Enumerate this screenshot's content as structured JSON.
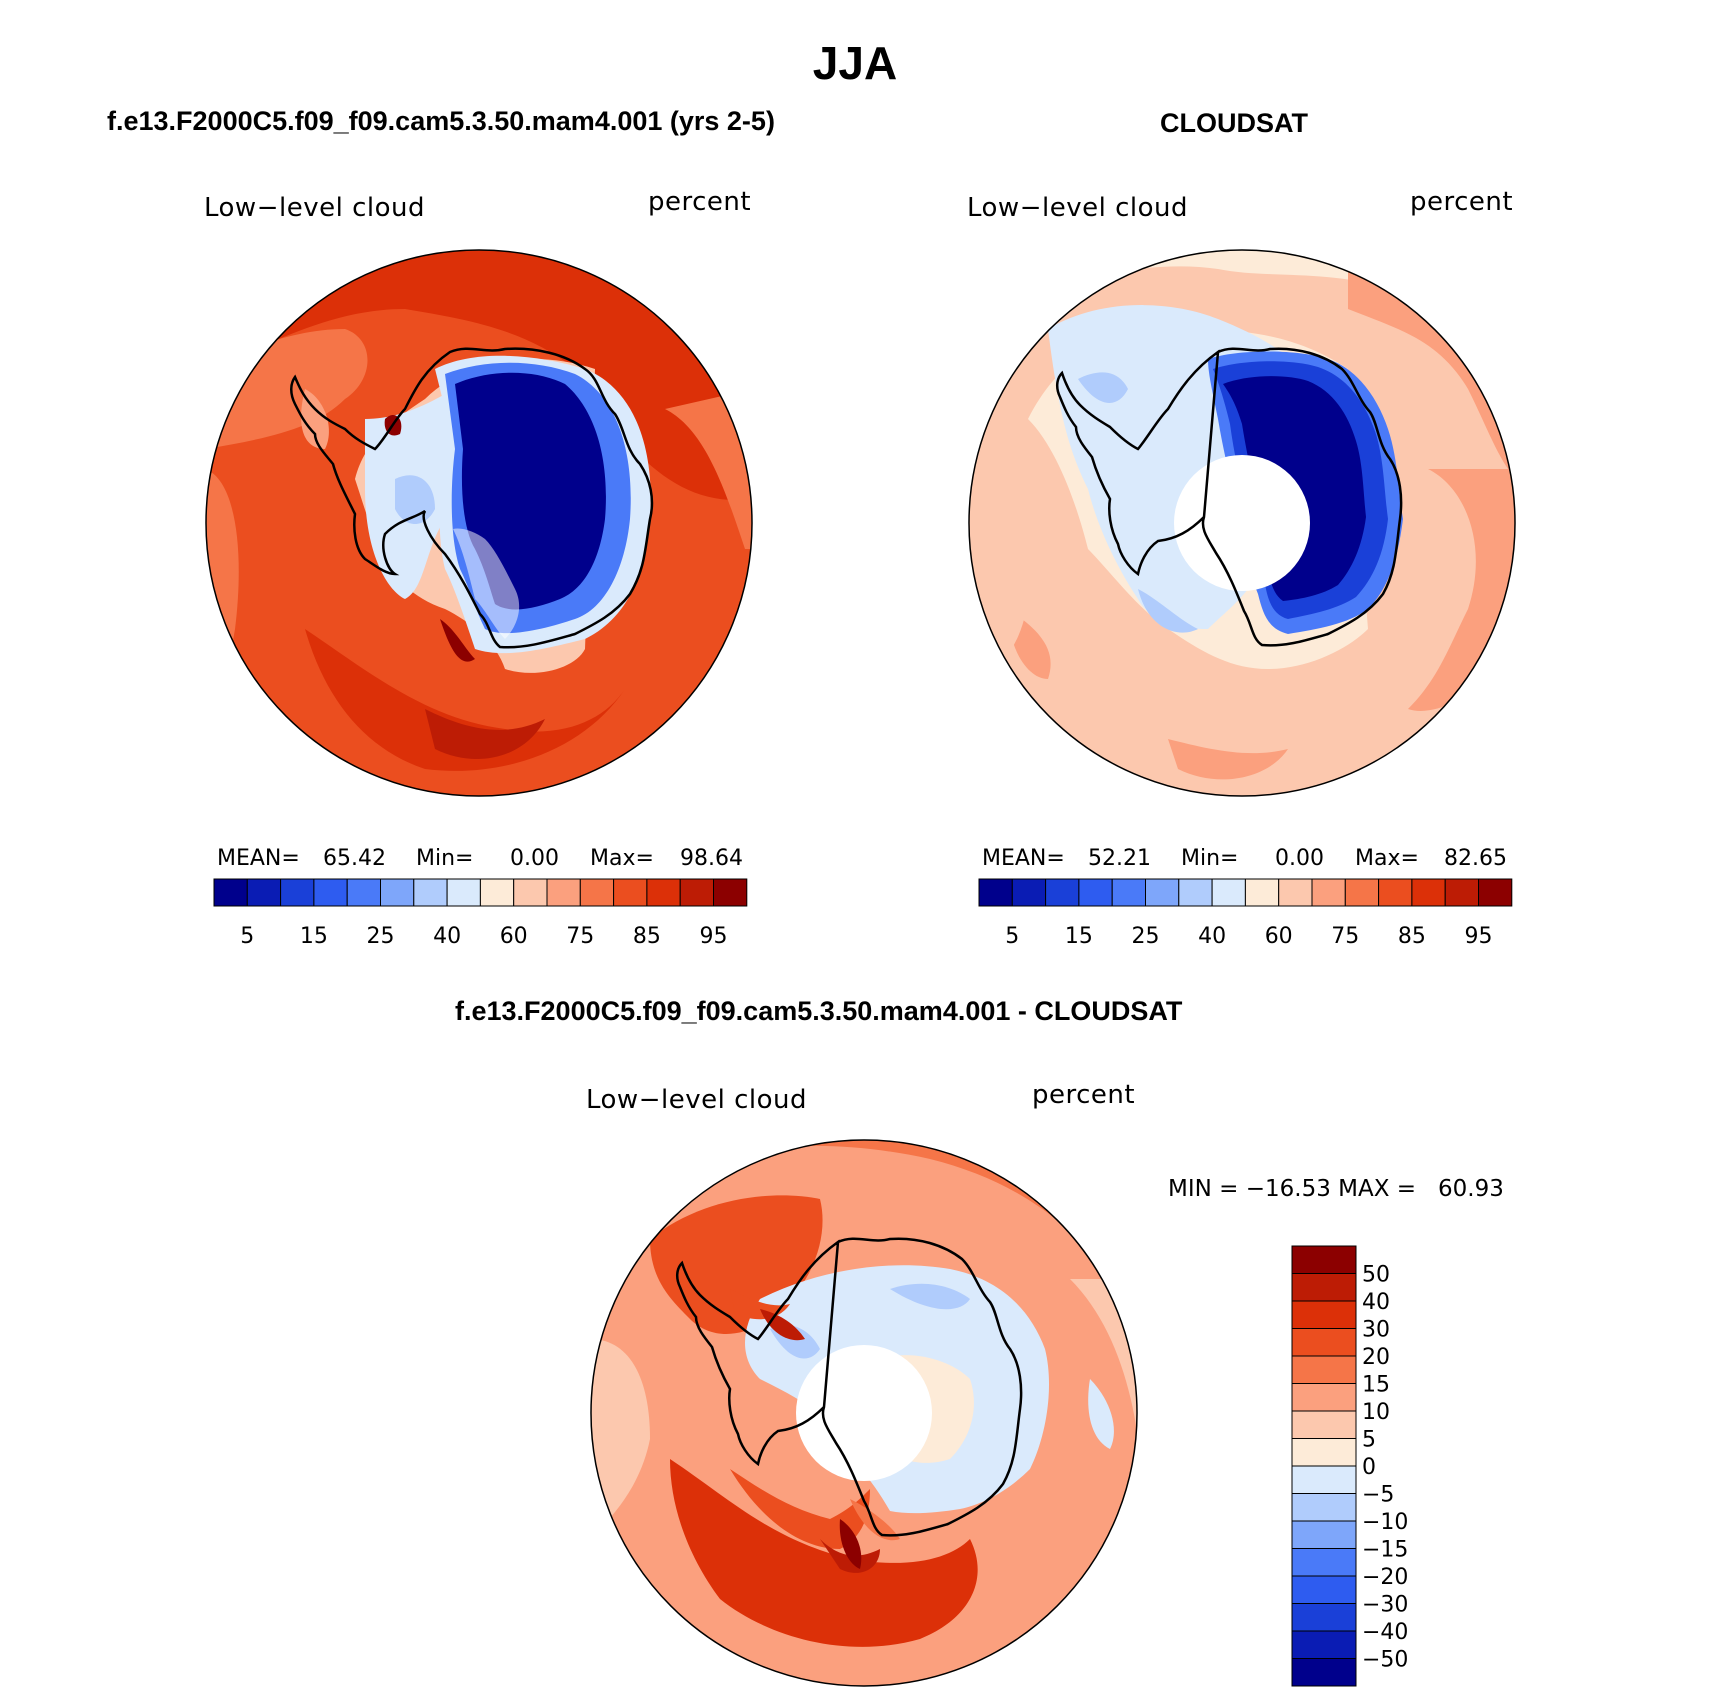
{
  "title": "JJA",
  "colors": {
    "pos_scale": [
      "#00008c",
      "#0a1cb4",
      "#1a40d8",
      "#2e5cf0",
      "#4a7af8",
      "#7ea6fa",
      "#b0ccfc",
      "#daeafc",
      "#fdebd8",
      "#fcc8ae",
      "#fba07e",
      "#f57548",
      "#eb4e1f",
      "#dc3008",
      "#bd1c05",
      "#8c0000"
    ],
    "diff_scale": [
      "#00008c",
      "#0a1cb4",
      "#1a40d8",
      "#2e5cf0",
      "#4a7af8",
      "#7ea6fa",
      "#b0ccfc",
      "#daeafc",
      "#fdebd8",
      "#fcc8ae",
      "#fba07e",
      "#f57548",
      "#eb4e1f",
      "#dc3008",
      "#bd1c05",
      "#8c0000"
    ]
  },
  "panels": [
    {
      "title": "f.e13.F2000C5.f09_f09.cam5.3.50.mam4.001 (yrs 2-5)",
      "left_label": "Low−level cloud",
      "right_label": "percent",
      "stats": {
        "mean_label": "MEAN=",
        "mean": "65.42",
        "min_label": "Min=",
        "min": "0.00",
        "max_label": "Max=",
        "max": "98.64"
      },
      "colorbar_labels": [
        "5",
        "15",
        "25",
        "40",
        "60",
        "75",
        "85",
        "95"
      ]
    },
    {
      "title": "CLOUDSAT",
      "left_label": "Low−level cloud",
      "right_label": "percent",
      "stats": {
        "mean_label": "MEAN=",
        "mean": "52.21",
        "min_label": "Min=",
        "min": "0.00",
        "max_label": "Max=",
        "max": "82.65"
      },
      "colorbar_labels": [
        "5",
        "15",
        "25",
        "40",
        "60",
        "75",
        "85",
        "95"
      ]
    },
    {
      "title": "f.e13.F2000C5.f09_f09.cam5.3.50.mam4.001 - CLOUDSAT",
      "left_label": "Low−level cloud",
      "right_label": "percent",
      "minmax": "MIN = −16.53 MAX =   60.93",
      "colorbar_labels": [
        "50",
        "40",
        "30",
        "20",
        "15",
        "10",
        "5",
        "0",
        "−5",
        "−10",
        "−15",
        "−20",
        "−30",
        "−40",
        "−50"
      ]
    }
  ]
}
